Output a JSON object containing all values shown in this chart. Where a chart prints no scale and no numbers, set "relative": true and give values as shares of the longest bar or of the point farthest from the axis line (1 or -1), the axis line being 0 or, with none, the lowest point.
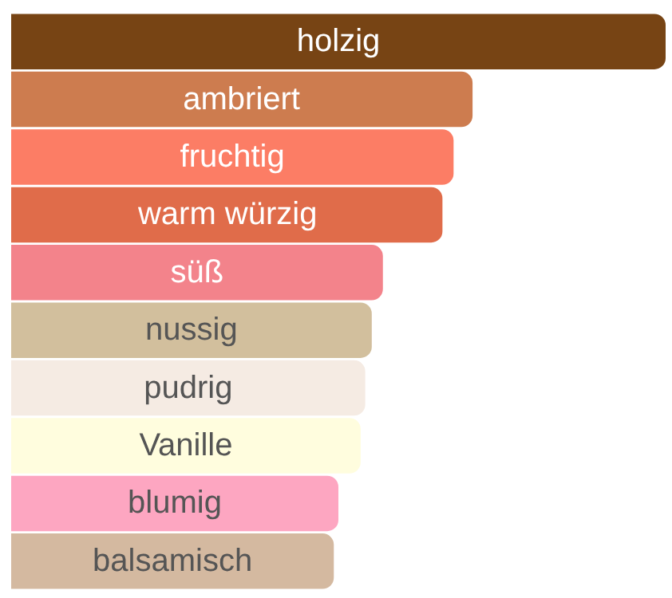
{
  "chart_data": {
    "type": "bar",
    "orientation": "horizontal",
    "relative": true,
    "tick_labels": false,
    "categories": [
      "holzig",
      "ambriert",
      "fruchtig",
      "warm würzig",
      "süß",
      "nussig",
      "pudrig",
      "Vanille",
      "blumig",
      "balsamisch"
    ],
    "values": [
      1,
      0.705,
      0.676,
      0.659,
      0.568,
      0.551,
      0.541,
      0.534,
      0.5,
      0.493
    ],
    "colors": [
      "#774414",
      "#cd7c4f",
      "#fc7d65",
      "#e06c4a",
      "#f3838b",
      "#d2bf9d",
      "#f5ebe3",
      "#fffdde",
      "#fda6c1",
      "#d4b9a0"
    ]
  }
}
